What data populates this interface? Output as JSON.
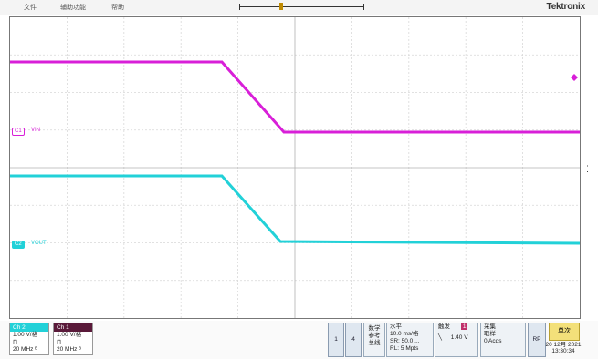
{
  "menu": [
    "文件",
    "辅助功能",
    "帮助"
  ],
  "brand": {
    "text": "Tektronix"
  },
  "channels": {
    "c1": {
      "tag": "C1",
      "name": "VIN",
      "color": "#d81fd8"
    },
    "c2": {
      "tag": "C2",
      "name": "VOUT",
      "color": "#22d1d8"
    }
  },
  "ch2_box": {
    "title": "Ch 2",
    "scale": "1.00 V/格",
    "coupling": "⊓",
    "bw": "20 MHz ᴮ"
  },
  "ch1_box": {
    "title": "Ch 1",
    "scale": "1.00 V/格",
    "coupling": "⊓",
    "bw": "20 MHz ᴮ"
  },
  "buttons": {
    "b1": "1",
    "b2": "4",
    "math": [
      "数学",
      "参考",
      "总线"
    ]
  },
  "horizontal": {
    "title": "水平",
    "scale": "10.0 ms/格",
    "sr": "SR: 50.0 ...",
    "rl": "RL: 5 Mpts"
  },
  "trigger": {
    "title": "触发",
    "ch": "1",
    "slope": "╲",
    "level": "1.40 V"
  },
  "acquire": {
    "title": "采集",
    "mode": "取样",
    "count": "0 Acqs"
  },
  "rp": "RP",
  "single": "单次",
  "date": "20 12月 2021",
  "time": "13:30:34"
}
